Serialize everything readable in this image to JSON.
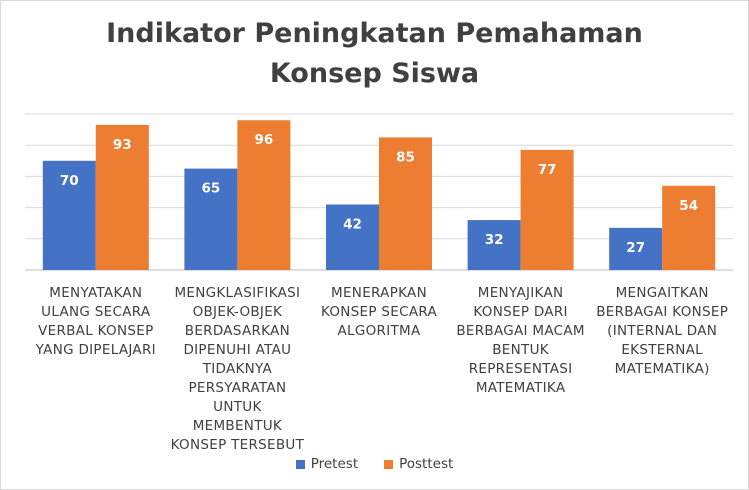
{
  "chart_data": {
    "type": "bar",
    "title_lines": [
      "Indikator Peningkatan Pemahaman",
      "Konsep Siswa"
    ],
    "categories": [
      [
        "MENYATAKAN",
        "ULANG SECARA",
        "VERBAL KONSEP",
        "YANG DIPELAJARI"
      ],
      [
        "MENGKLASIFIKASI",
        "OBJEK-OBJEK",
        "BERDASARKAN",
        "DIPENUHI ATAU",
        "TIDAKNYA",
        "PERSYARATAN",
        "UNTUK MEMBENTUK",
        "KONSEP TERSEBUT"
      ],
      [
        "MENERAPKAN",
        "KONSEP SECARA",
        "ALGORITMA"
      ],
      [
        "MENYAJIKAN",
        "KONSEP DARI",
        "BERBAGAI MACAM",
        "BENTUK",
        "REPRESENTASI",
        "MATEMATIKA"
      ],
      [
        "MENGAITKAN",
        "BERBAGAI KONSEP",
        "(INTERNAL DAN",
        "EKSTERNAL",
        "MATEMATIKA)"
      ]
    ],
    "series": [
      {
        "name": "Pretest",
        "color": "#4472C4",
        "values": [
          70,
          65,
          42,
          32,
          27
        ]
      },
      {
        "name": "Posttest",
        "color": "#ED7D31",
        "values": [
          93,
          96,
          85,
          77,
          54
        ]
      }
    ],
    "ylim": [
      0,
      100
    ],
    "y_gridlines": [
      0,
      20,
      40,
      60,
      80,
      100
    ],
    "data_labels": true,
    "grid": true,
    "legend": "bottom"
  }
}
